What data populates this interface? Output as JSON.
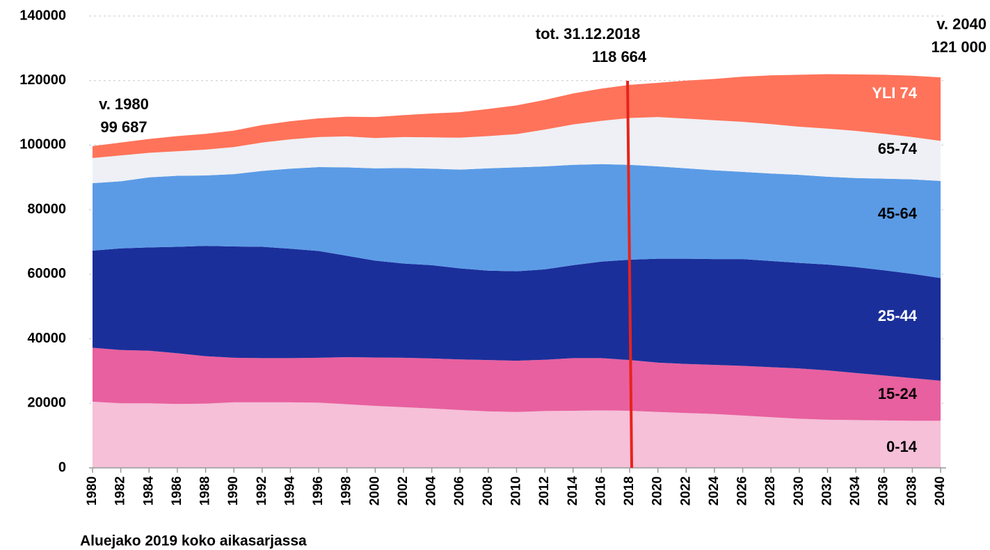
{
  "chart_data": {
    "type": "stacked_area",
    "x": [
      1980,
      1982,
      1984,
      1986,
      1988,
      1990,
      1992,
      1994,
      1996,
      1998,
      2000,
      2002,
      2004,
      2006,
      2008,
      2010,
      2012,
      2014,
      2016,
      2018,
      2020,
      2022,
      2024,
      2026,
      2028,
      2030,
      2032,
      2034,
      2036,
      2038,
      2040
    ],
    "series": [
      {
        "name": "0-14",
        "color": "#f5c0d8",
        "label_color": "#000000",
        "values": [
          20500,
          20000,
          20000,
          19800,
          19900,
          20300,
          20300,
          20300,
          20200,
          19700,
          19200,
          18800,
          18400,
          17900,
          17500,
          17300,
          17600,
          17700,
          17800,
          17700,
          17300,
          17000,
          16700,
          16200,
          15700,
          15200,
          14900,
          14800,
          14700,
          14600,
          14600
        ]
      },
      {
        "name": "15-24",
        "color": "#e8609f",
        "label_color": "#000000",
        "values": [
          16700,
          16500,
          16300,
          15700,
          14700,
          13800,
          13700,
          13700,
          13900,
          14600,
          15000,
          15300,
          15500,
          15700,
          15900,
          15900,
          15900,
          16300,
          16200,
          15700,
          15300,
          15200,
          15200,
          15400,
          15500,
          15600,
          15300,
          14600,
          13900,
          13200,
          12400
        ]
      },
      {
        "name": "25-44",
        "color": "#1b2f9a",
        "label_color": "#ffffff",
        "values": [
          30100,
          31500,
          32000,
          33000,
          34200,
          34500,
          34500,
          33900,
          33100,
          31400,
          30000,
          29200,
          28900,
          28200,
          27700,
          27700,
          28000,
          28800,
          29900,
          31100,
          32200,
          32600,
          32800,
          33100,
          32900,
          32700,
          32800,
          32800,
          32600,
          32300,
          31800
        ]
      },
      {
        "name": "45-64",
        "color": "#5b9be6",
        "label_color": "#000000",
        "values": [
          20900,
          20800,
          21700,
          22000,
          21800,
          22400,
          23500,
          24800,
          26000,
          27400,
          28600,
          29600,
          29900,
          30600,
          31700,
          32200,
          31900,
          31100,
          30200,
          29400,
          28600,
          28000,
          27500,
          27000,
          27100,
          27300,
          27200,
          27600,
          28400,
          29300,
          30100
        ]
      },
      {
        "name": "65-74",
        "color": "#eef0f5",
        "label_color": "#000000",
        "values": [
          7800,
          8000,
          7600,
          7600,
          8000,
          8400,
          8800,
          9100,
          9300,
          9600,
          9400,
          9600,
          9700,
          9900,
          10000,
          10300,
          11400,
          12500,
          13400,
          14500,
          15300,
          15400,
          15500,
          15500,
          15300,
          14900,
          14900,
          14600,
          13900,
          13100,
          12400
        ]
      },
      {
        "name": "YLI 74",
        "color": "#ff735a",
        "label_color": "#ffffff",
        "values": [
          3687,
          4000,
          4300,
          4700,
          4900,
          5100,
          5400,
          5600,
          5800,
          6100,
          6500,
          6800,
          7400,
          7900,
          8400,
          8900,
          9200,
          9600,
          10000,
          10264,
          10600,
          11800,
          12800,
          14000,
          15100,
          16100,
          16900,
          17500,
          18300,
          19000,
          19700
        ]
      }
    ],
    "xlim": [
      1980,
      2040
    ],
    "xticks": [
      1980,
      1982,
      1984,
      1986,
      1988,
      1990,
      1992,
      1994,
      1996,
      1998,
      2000,
      2002,
      2004,
      2006,
      2008,
      2010,
      2012,
      2014,
      2016,
      2018,
      2020,
      2022,
      2024,
      2026,
      2028,
      2030,
      2032,
      2034,
      2036,
      2038,
      2040
    ],
    "ylim": [
      0,
      140000
    ],
    "yticks": [
      0,
      20000,
      40000,
      60000,
      80000,
      100000,
      120000,
      140000
    ],
    "grid": true,
    "vline": {
      "x": 2018,
      "color": "#e8231a"
    },
    "annotations": [
      {
        "lines": [
          "v. 1980",
          "99 687"
        ]
      },
      {
        "lines": [
          "tot. 31.12.2018",
          "118 664"
        ]
      },
      {
        "lines": [
          "v. 2040",
          "121 000"
        ]
      }
    ],
    "footnote": "Aluejako 2019 koko aikasarjassa"
  }
}
